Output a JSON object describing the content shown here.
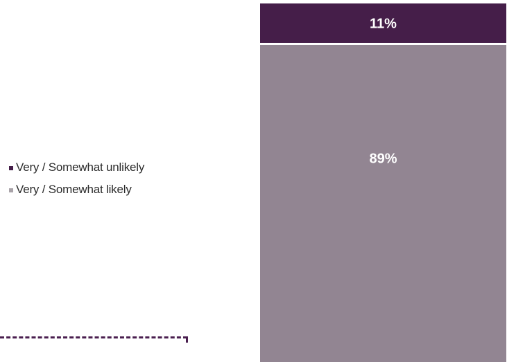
{
  "chart_data": {
    "type": "bar",
    "stacked": true,
    "categories": [
      ""
    ],
    "series": [
      {
        "name": "Very / Somewhat unlikely",
        "values": [
          11
        ],
        "label": "11%",
        "color": "#451e49"
      },
      {
        "name": "Very / Somewhat likely",
        "values": [
          89
        ],
        "label": "89%",
        "color": "#928592"
      }
    ],
    "ylim": [
      0,
      100
    ],
    "legend_position": "left",
    "grid": false
  }
}
